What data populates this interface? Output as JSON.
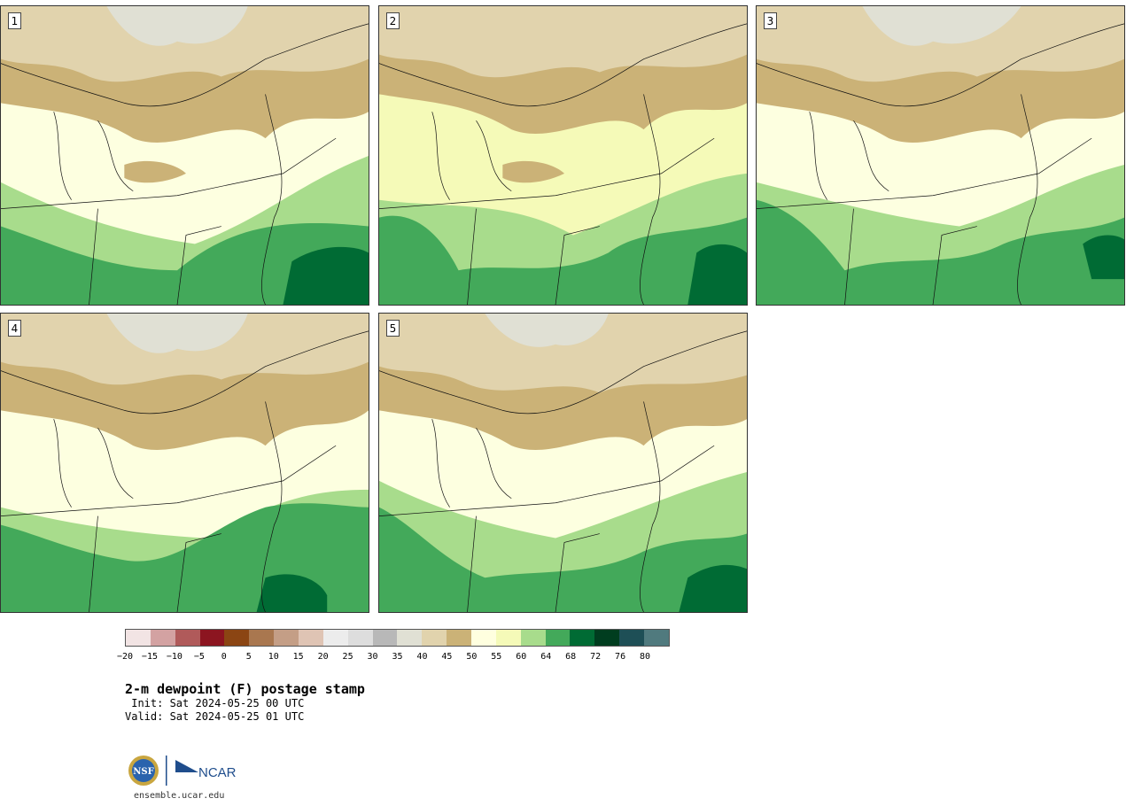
{
  "panels": [
    {
      "number": "1"
    },
    {
      "number": "2"
    },
    {
      "number": "3"
    },
    {
      "number": "4"
    },
    {
      "number": "5"
    }
  ],
  "colorbar": {
    "colors": [
      "#f2e4e4",
      "#d3a2a2",
      "#b05a5a",
      "#8c1520",
      "#8b4513",
      "#a9774f",
      "#c49e86",
      "#dfc4b4",
      "#ececec",
      "#dddddd",
      "#b8b8b8",
      "#e0e0d4",
      "#e1d3ad",
      "#cbb277",
      "#ffffdf",
      "#f5fab8",
      "#a8dc8c",
      "#43a95a",
      "#006b34",
      "#003d1f",
      "#1e4f56",
      "#507a7e"
    ],
    "tick_labels": [
      "−20",
      "−15",
      "−10",
      "−5",
      "0",
      "5",
      "10",
      "15",
      "20",
      "25",
      "30",
      "35",
      "40",
      "45",
      "50",
      "55",
      "60",
      "64",
      "68",
      "72",
      "76",
      "80"
    ]
  },
  "title": "2-m dewpoint (F) postage stamp",
  "init": " Init: Sat 2024-05-25 00 UTC",
  "valid": "Valid: Sat 2024-05-25 01 UTC",
  "logos": {
    "nsf": "NSF",
    "ncar": "NCAR"
  },
  "url": "ensemble.ucar.edu"
}
